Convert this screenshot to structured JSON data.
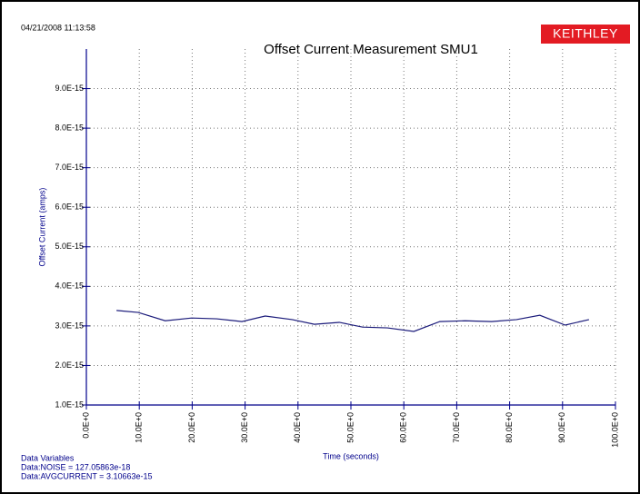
{
  "chart_data": {
    "type": "line",
    "timestamp": "04/21/2008 11:13:58",
    "logo": "KEITHLEY",
    "title": "Offset Current Measurement SMU1",
    "y_label": "Offset Current (amps)",
    "x_label": "Time (seconds)",
    "footer": [
      "Data Variables",
      "Data:NOISE = 127.05863e-18",
      "Data:AVGCURRENT = 3.10663e-15"
    ],
    "xlim": [
      0,
      100
    ],
    "ylim": [
      1e-15,
      1e-14
    ],
    "xticks": [
      {
        "value": 0,
        "label": "0.0E+0"
      },
      {
        "value": 10,
        "label": "10.0E+0"
      },
      {
        "value": 20,
        "label": "20.0E+0"
      },
      {
        "value": 30,
        "label": "30.0E+0"
      },
      {
        "value": 40,
        "label": "40.0E+0"
      },
      {
        "value": 50,
        "label": "50.0E+0"
      },
      {
        "value": 60,
        "label": "60.0E+0"
      },
      {
        "value": 70,
        "label": "70.0E+0"
      },
      {
        "value": 80,
        "label": "80.0E+0"
      },
      {
        "value": 90,
        "label": "90.0E+0"
      },
      {
        "value": 100,
        "label": "100.0E+0"
      }
    ],
    "yticks": [
      {
        "value": 1e-15,
        "label": "1.0E-15"
      },
      {
        "value": 2e-15,
        "label": "2.0E-15"
      },
      {
        "value": 3e-15,
        "label": "3.0E-15"
      },
      {
        "value": 4e-15,
        "label": "4.0E-15"
      },
      {
        "value": 5e-15,
        "label": "5.0E-15"
      },
      {
        "value": 6e-15,
        "label": "6.0E-15"
      },
      {
        "value": 7e-15,
        "label": "7.0E-15"
      },
      {
        "value": 8e-15,
        "label": "8.0E-15"
      },
      {
        "value": 9e-15,
        "label": "9.0E-15"
      }
    ],
    "grid": true,
    "series": [
      {
        "name": "Offset Current",
        "color": "#1a1a7a",
        "x": [
          5.7,
          9.8,
          14.9,
          19.9,
          24.6,
          29.4,
          33.8,
          38.9,
          43.1,
          47.8,
          52.2,
          56.9,
          61.9,
          66.8,
          71.6,
          76.6,
          81.3,
          85.7,
          90.5,
          95.0
        ],
        "values": [
          3.39e-15,
          3.34e-15,
          3.13e-15,
          3.2e-15,
          3.18e-15,
          3.11e-15,
          3.25e-15,
          3.16e-15,
          3.04e-15,
          3.09e-15,
          2.97e-15,
          2.95e-15,
          2.86e-15,
          3.11e-15,
          3.13e-15,
          3.11e-15,
          3.16e-15,
          3.27e-15,
          3.02e-15,
          3.16e-15
        ]
      }
    ]
  }
}
